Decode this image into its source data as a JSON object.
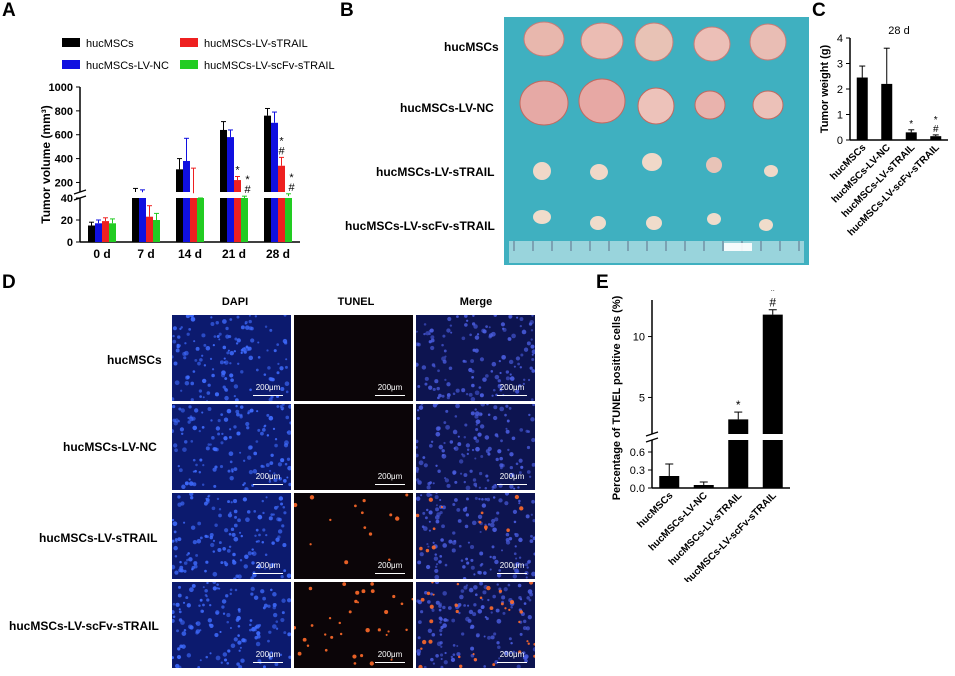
{
  "panels": {
    "A": "A",
    "B": "B",
    "C": "C",
    "D": "D",
    "E": "E"
  },
  "groups": [
    "hucMSCs",
    "hucMSCs-LV-NC",
    "hucMSCs-LV-sTRAIL",
    "hucMSCs-LV-scFv-sTRAIL"
  ],
  "colors": {
    "hucMSCs": "#000000",
    "hucMSCs-LV-NC": "#1010e0",
    "hucMSCs-LV-sTRAIL": "#ee2020",
    "hucMSCs-LV-scFv-sTRAIL": "#22cc22"
  },
  "panelD": {
    "columns": [
      "DAPI",
      "TUNEL",
      "Merge"
    ],
    "scale_label": "200μm"
  },
  "chart_data": [
    {
      "id": "A",
      "type": "bar",
      "ylabel": "Tumor volume (mm³)",
      "categories": [
        "0 d",
        "7 d",
        "14 d",
        "21 d",
        "28 d"
      ],
      "axis_break": [
        40,
        120
      ],
      "upper_ticks": [
        200,
        400,
        600,
        800,
        1000
      ],
      "lower_ticks": [
        0,
        20,
        40
      ],
      "series": [
        {
          "name": "hucMSCs",
          "values": [
            15,
            120,
            310,
            640,
            760
          ],
          "errors": [
            3,
            30,
            90,
            70,
            60
          ]
        },
        {
          "name": "hucMSCs-LV-NC",
          "values": [
            17,
            118,
            380,
            580,
            700
          ],
          "errors": [
            3,
            20,
            190,
            60,
            90
          ]
        },
        {
          "name": "hucMSCs-LV-sTRAIL",
          "values": [
            19,
            23,
            110,
            220,
            340
          ],
          "errors": [
            3,
            10,
            210,
            30,
            70
          ]
        },
        {
          "name": "hucMSCs-LV-scFv-sTRAIL",
          "values": [
            17,
            20,
            60,
            70,
            85
          ],
          "errors": [
            4,
            6,
            10,
            15,
            20
          ]
        }
      ],
      "annotations": [
        "*",
        "*",
        "#",
        "*",
        "#",
        "*",
        "#"
      ]
    },
    {
      "id": "C",
      "type": "bar",
      "title": "28 d",
      "ylabel": "Tumor weight (g)",
      "categories": [
        "hucMSCs",
        "hucMSCs-LV-NC",
        "hucMSCs-LV-sTRAIL",
        "hucMSCs-LV-scFv-sTRAIL"
      ],
      "values": [
        2.45,
        2.2,
        0.3,
        0.15
      ],
      "errors": [
        0.45,
        1.4,
        0.1,
        0.05
      ],
      "ylim": [
        0,
        4
      ],
      "yticks": [
        0,
        1,
        2,
        3,
        4
      ],
      "annotations": [
        "*",
        "*",
        "#"
      ]
    },
    {
      "id": "E",
      "type": "bar",
      "ylabel": "Percentage of TUNEL positive cells (%)",
      "categories": [
        "hucMSCs",
        "hucMSCs-LV-NC",
        "hucMSCs-LV-sTRAIL",
        "hucMSCs-LV-scFv-sTRAIL"
      ],
      "values": [
        0.2,
        0.05,
        3.2,
        11.8
      ],
      "errors": [
        0.2,
        0.05,
        0.6,
        0.4
      ],
      "upper_ticks": [
        5,
        10
      ],
      "lower_ticks": [
        0.0,
        0.3,
        0.6
      ],
      "annotations": [
        "*",
        "*",
        "#"
      ]
    }
  ]
}
